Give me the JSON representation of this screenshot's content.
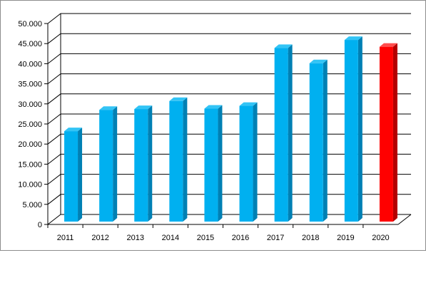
{
  "chart_data": {
    "type": "bar",
    "title": "",
    "xlabel": "",
    "ylabel": "",
    "categories": [
      "2011",
      "2012",
      "2013",
      "2014",
      "2015",
      "2016",
      "2017",
      "2018",
      "2019",
      "2020"
    ],
    "values": [
      22500,
      27800,
      28000,
      30000,
      28100,
      28800,
      43200,
      39400,
      45200,
      43500
    ],
    "ylim": [
      0,
      50000
    ],
    "y_ticks": [
      "0",
      "5.000",
      "10.000",
      "15.000",
      "20.000",
      "25.000",
      "30.000",
      "35.000",
      "40.000",
      "45.000",
      "50.000"
    ],
    "grid": true,
    "legend": "none",
    "style": "3d-columns",
    "colors": {
      "bar": "#00b0f0",
      "bar_top": "#33c4f5",
      "bar_side": "#0080b4",
      "highlight": "#ff0000",
      "highlight_top": "#ff4d4d",
      "highlight_side": "#b40000",
      "gridline": "#000000",
      "frame": "#8c8c8c"
    },
    "highlight_category": "2020"
  }
}
